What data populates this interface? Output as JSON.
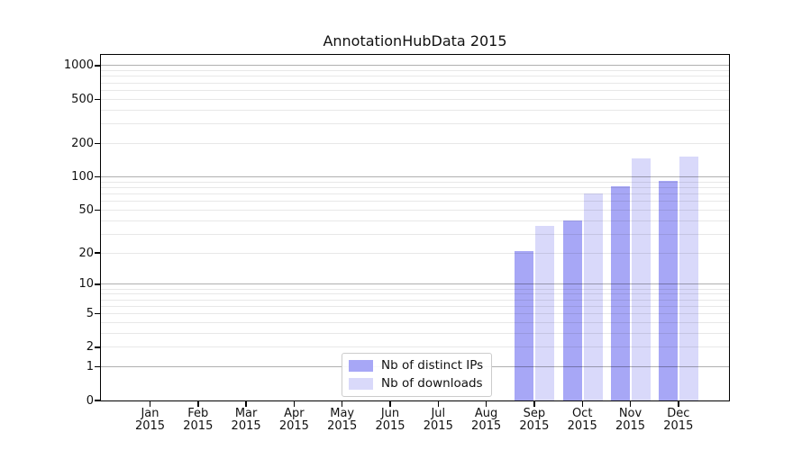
{
  "figure": {
    "title": "AnnotationHubData 2015"
  },
  "chart_data": {
    "type": "bar",
    "title": "AnnotationHubData 2015",
    "categories": [
      "Jan 2015",
      "Feb 2015",
      "Mar 2015",
      "Apr 2015",
      "May 2015",
      "Jun 2015",
      "Jul 2015",
      "Aug 2015",
      "Sep 2015",
      "Oct 2015",
      "Nov 2015",
      "Dec 2015"
    ],
    "series": [
      {
        "name": "Nb of distinct IPs",
        "color": "#a7a7f6",
        "values": [
          0,
          0,
          0,
          0,
          0,
          0,
          0,
          0,
          21,
          40,
          82,
          92
        ]
      },
      {
        "name": "Nb of downloads",
        "color": "#d9d9fa",
        "values": [
          0,
          0,
          0,
          0,
          0,
          0,
          0,
          0,
          36,
          70,
          148,
          152
        ]
      }
    ],
    "yscale": "log10(value+1)",
    "ytick_values": [
      0,
      1,
      2,
      5,
      10,
      20,
      50,
      100,
      200,
      500,
      1000
    ],
    "ytick_labels": [
      "0",
      "1",
      "2",
      "5",
      "10",
      "20",
      "50",
      "100",
      "200",
      "500",
      "1000"
    ],
    "ylim": [
      0,
      1260
    ],
    "xlabel": "",
    "ylabel": "",
    "grid": true,
    "legend_position": "lower center"
  },
  "legend": {
    "items": [
      {
        "label": "Nb of distinct IPs"
      },
      {
        "label": "Nb of downloads"
      }
    ]
  },
  "colors": {
    "bar_ips": "#a7a7f6",
    "bar_downloads": "#d9d9fa",
    "grid_major": "#b0b0b0",
    "grid_minor": "#e8e8e8",
    "axis_frame": "#000000",
    "legend_border": "#cccccc",
    "text": "#000000"
  }
}
